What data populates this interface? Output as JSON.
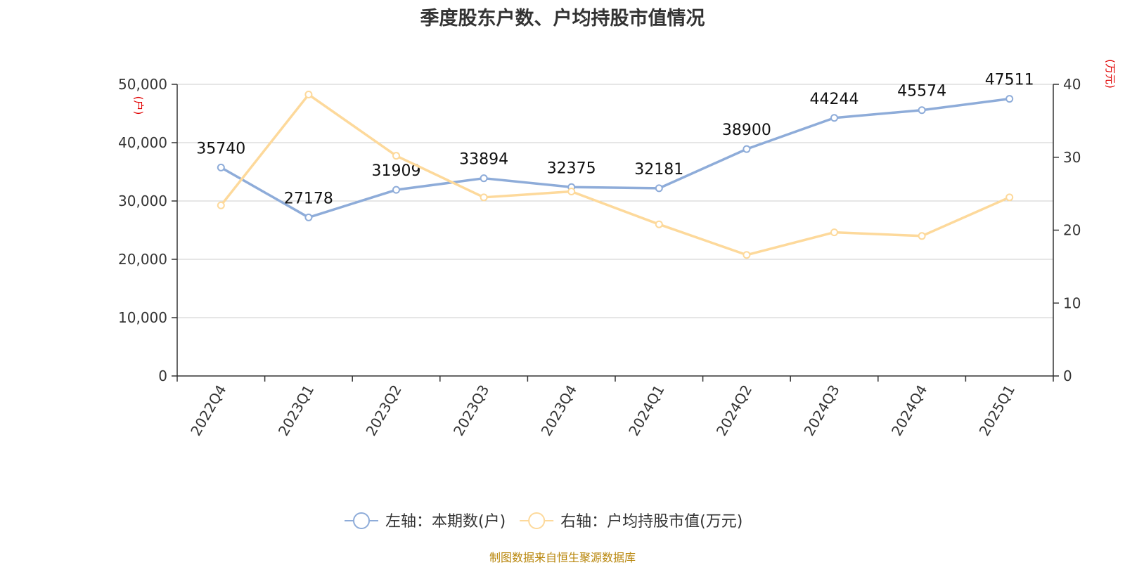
{
  "chart_data": {
    "type": "line",
    "title": "季度股东户数、户均持股市值情况",
    "categories": [
      "2022Q4",
      "2023Q1",
      "2023Q2",
      "2023Q3",
      "2023Q4",
      "2024Q1",
      "2024Q2",
      "2024Q3",
      "2024Q4",
      "2025Q1"
    ],
    "series": [
      {
        "name": "左轴：本期数(户)",
        "axis": "left",
        "color": "#8eacd9",
        "values": [
          35740,
          27178,
          31909,
          33894,
          32375,
          32181,
          38900,
          44244,
          45574,
          47511
        ],
        "data_labels": [
          "35740",
          "27178",
          "31909",
          "33894",
          "32375",
          "32181",
          "38900",
          "44244",
          "45574",
          "47511"
        ]
      },
      {
        "name": "右轴：户均持股市值(万元)",
        "axis": "right",
        "color": "#fdd99b",
        "values": [
          23.4,
          38.6,
          30.2,
          24.5,
          25.3,
          20.8,
          16.6,
          19.7,
          19.2,
          24.5
        ]
      }
    ],
    "y_left": {
      "ylim": [
        0,
        50000
      ],
      "ticks": [
        0,
        10000,
        20000,
        30000,
        40000,
        50000
      ],
      "tick_labels": [
        "0",
        "10,000",
        "20,000",
        "30,000",
        "40,000",
        "50,000"
      ],
      "unit": "(户)"
    },
    "y_right": {
      "ylim": [
        0,
        40
      ],
      "ticks": [
        0,
        10,
        20,
        30,
        40
      ],
      "tick_labels": [
        "0",
        "10",
        "20",
        "30",
        "40"
      ],
      "unit": "(万元)"
    },
    "grid": true,
    "legend_position": "bottom-center"
  },
  "footer": {
    "source": "制图数据来自恒生聚源数据库"
  }
}
